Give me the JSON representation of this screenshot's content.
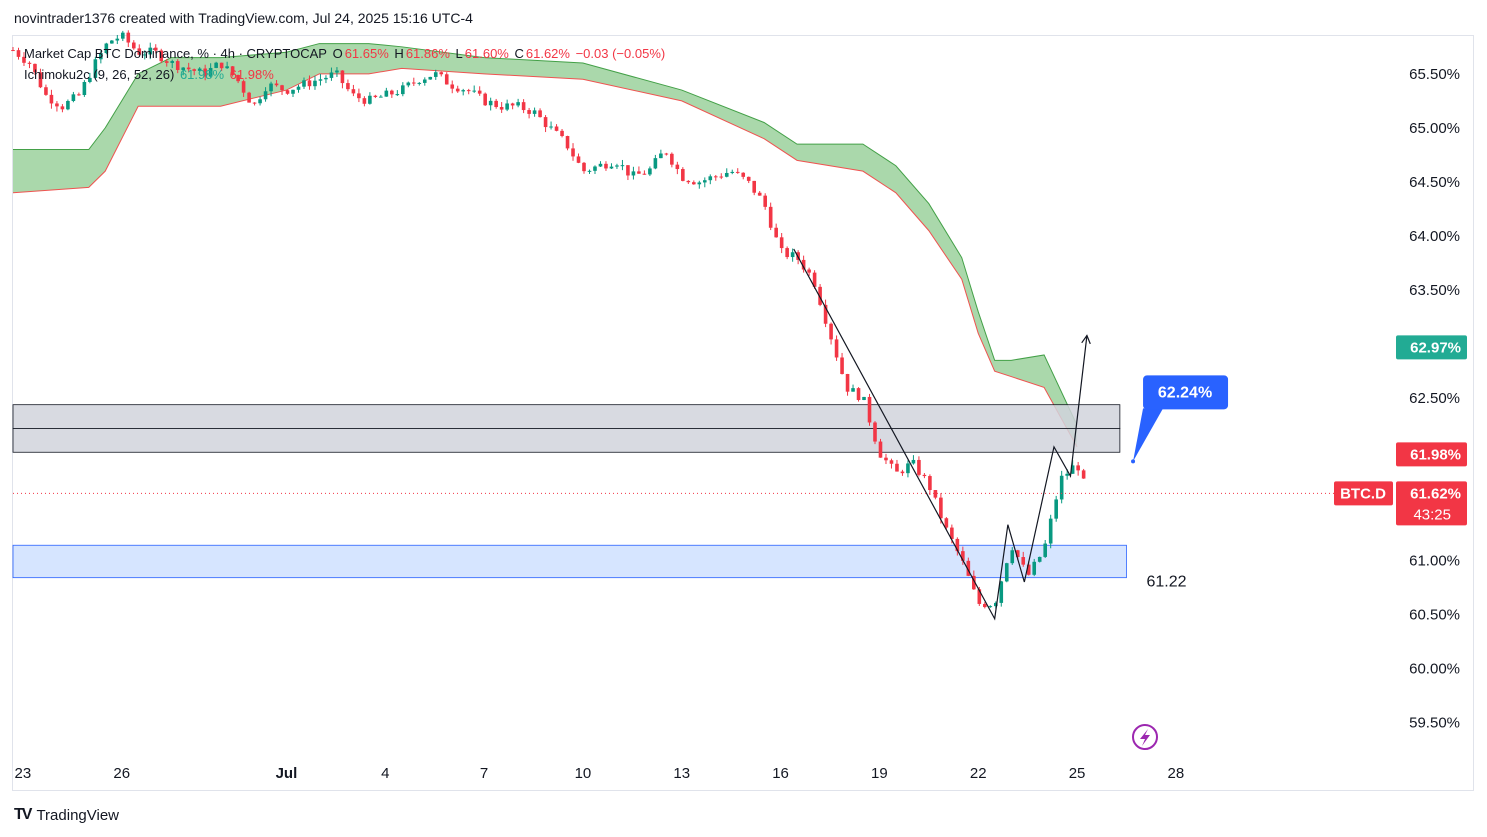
{
  "caption": "novintrader1376 created with TradingView.com, Jul 24, 2025 15:16 UTC-4",
  "brand": {
    "logo": "TV",
    "name": "TradingView"
  },
  "legend": {
    "symbol": "Market Cap BTC Dominance, % · 4h · CRYPTOCAP",
    "o_label": "O",
    "o": "61.65%",
    "h_label": "H",
    "h": "61.86%",
    "l_label": "L",
    "l": "61.60%",
    "c_label": "C",
    "c": "61.62%",
    "change": "−0.03 (−0.05%)",
    "indicator": "Ichimoku2c (9, 26, 52, 26)",
    "indicator_v1": "61.98%",
    "indicator_v2": "61.98%"
  },
  "colors": {
    "up": "#089981",
    "down": "#f23645",
    "cloud": "#a5d6a7",
    "zone_grey": "#d1d4dc",
    "zone_blue": "#cfe0ff",
    "callout": "#2962ff"
  },
  "chart_data": {
    "type": "candlestick",
    "ylim": [
      59.2,
      65.85
    ],
    "y_ticks": [
      "65.50%",
      "65.00%",
      "64.50%",
      "64.00%",
      "63.50%",
      "62.50%",
      "62.00%",
      "61.00%",
      "60.50%",
      "60.00%",
      "59.50%"
    ],
    "y_tick_values": [
      65.5,
      65.0,
      64.5,
      64.0,
      63.5,
      62.5,
      62.0,
      61.0,
      60.5,
      60.0,
      59.5
    ],
    "x_ticks": [
      "23",
      "26",
      "Jul",
      "4",
      "7",
      "10",
      "13",
      "16",
      "19",
      "22",
      "25",
      "28"
    ],
    "x_tick_days": [
      -8,
      -5,
      0,
      3,
      6,
      9,
      12,
      15,
      18,
      21,
      24,
      27
    ],
    "x_range_days": [
      -8.3,
      33.5
    ],
    "close_points": [
      [
        -8.3,
        65.72
      ],
      [
        -7.8,
        65.6
      ],
      [
        -7.3,
        65.3
      ],
      [
        -6.8,
        65.2
      ],
      [
        -6.3,
        65.3
      ],
      [
        -5.8,
        65.6
      ],
      [
        -5.4,
        65.8
      ],
      [
        -5.0,
        65.85
      ],
      [
        -4.5,
        65.7
      ],
      [
        -4.0,
        65.7
      ],
      [
        -3.5,
        65.6
      ],
      [
        -3.0,
        65.55
      ],
      [
        -2.5,
        65.5
      ],
      [
        -2.0,
        65.6
      ],
      [
        -1.5,
        65.45
      ],
      [
        -1.0,
        65.2
      ],
      [
        -0.6,
        65.4
      ],
      [
        0.0,
        65.35
      ],
      [
        0.5,
        65.4
      ],
      [
        1.0,
        65.45
      ],
      [
        1.5,
        65.5
      ],
      [
        2.0,
        65.3
      ],
      [
        2.5,
        65.25
      ],
      [
        3.0,
        65.3
      ],
      [
        3.5,
        65.35
      ],
      [
        4.0,
        65.45
      ],
      [
        4.5,
        65.5
      ],
      [
        5.0,
        65.4
      ],
      [
        5.5,
        65.35
      ],
      [
        6.0,
        65.25
      ],
      [
        6.5,
        65.2
      ],
      [
        7.0,
        65.2
      ],
      [
        7.5,
        65.15
      ],
      [
        8.0,
        65.0
      ],
      [
        8.5,
        64.85
      ],
      [
        9.0,
        64.6
      ],
      [
        9.5,
        64.65
      ],
      [
        10.0,
        64.7
      ],
      [
        10.5,
        64.55
      ],
      [
        11.0,
        64.6
      ],
      [
        11.5,
        64.8
      ],
      [
        12.0,
        64.55
      ],
      [
        12.5,
        64.5
      ],
      [
        13.0,
        64.55
      ],
      [
        13.5,
        64.6
      ],
      [
        14.0,
        64.5
      ],
      [
        14.5,
        64.3
      ],
      [
        15.0,
        63.85
      ],
      [
        15.5,
        63.8
      ],
      [
        16.0,
        63.6
      ],
      [
        16.5,
        63.1
      ],
      [
        17.0,
        62.6
      ],
      [
        17.5,
        62.5
      ],
      [
        18.0,
        62.0
      ],
      [
        18.5,
        61.8
      ],
      [
        19.0,
        61.9
      ],
      [
        19.5,
        61.7
      ],
      [
        20.0,
        61.3
      ],
      [
        20.5,
        61.0
      ],
      [
        21.0,
        60.6
      ],
      [
        21.5,
        60.6
      ],
      [
        22.0,
        61.15
      ],
      [
        22.5,
        60.85
      ],
      [
        23.0,
        61.1
      ],
      [
        23.5,
        61.75
      ],
      [
        24.0,
        61.9
      ],
      [
        24.3,
        61.62
      ]
    ],
    "ichimoku_cloud_top": [
      [
        -8.3,
        64.8
      ],
      [
        -6.0,
        64.8
      ],
      [
        -5.5,
        65.0
      ],
      [
        -4.5,
        65.5
      ],
      [
        -3.5,
        65.65
      ],
      [
        -2.0,
        65.65
      ],
      [
        0.0,
        65.7
      ],
      [
        1.0,
        65.78
      ],
      [
        2.5,
        65.78
      ],
      [
        3.5,
        65.75
      ],
      [
        6.0,
        65.65
      ],
      [
        9.0,
        65.6
      ],
      [
        12.0,
        65.35
      ],
      [
        14.5,
        65.05
      ],
      [
        15.5,
        64.85
      ],
      [
        17.5,
        64.85
      ],
      [
        18.5,
        64.65
      ],
      [
        19.5,
        64.3
      ],
      [
        20.5,
        63.8
      ],
      [
        21.0,
        63.3
      ],
      [
        21.5,
        62.85
      ],
      [
        22.0,
        62.85
      ],
      [
        23.0,
        62.9
      ],
      [
        24.0,
        62.25
      ]
    ],
    "ichimoku_cloud_bottom": [
      [
        -8.3,
        64.4
      ],
      [
        -6.0,
        64.45
      ],
      [
        -5.5,
        64.6
      ],
      [
        -4.5,
        65.2
      ],
      [
        -3.5,
        65.2
      ],
      [
        -2.0,
        65.2
      ],
      [
        0.0,
        65.35
      ],
      [
        1.0,
        65.5
      ],
      [
        2.5,
        65.5
      ],
      [
        3.5,
        65.55
      ],
      [
        6.0,
        65.5
      ],
      [
        9.0,
        65.45
      ],
      [
        12.0,
        65.25
      ],
      [
        14.5,
        64.9
      ],
      [
        15.5,
        64.7
      ],
      [
        17.5,
        64.6
      ],
      [
        18.5,
        64.4
      ],
      [
        19.5,
        64.05
      ],
      [
        20.5,
        63.6
      ],
      [
        21.0,
        63.1
      ],
      [
        21.5,
        62.75
      ],
      [
        22.0,
        62.7
      ],
      [
        23.0,
        62.6
      ],
      [
        24.0,
        62.05
      ]
    ],
    "zones": [
      {
        "name": "grey-resistance-upper",
        "y_low": 62.22,
        "y_high": 62.44,
        "x_end_day": 25.3
      },
      {
        "name": "grey-resistance-lower",
        "y_low": 62.0,
        "y_high": 62.22,
        "x_end_day": 25.3
      },
      {
        "name": "blue-support",
        "y_low": 60.84,
        "y_high": 61.14,
        "x_end_day": 25.5,
        "label": "61.22"
      }
    ],
    "drawn_path": [
      [
        15.4,
        63.88
      ],
      [
        21.5,
        60.46
      ],
      [
        21.9,
        61.33
      ],
      [
        22.4,
        60.8
      ],
      [
        23.3,
        62.05
      ],
      [
        23.8,
        61.78
      ],
      [
        24.3,
        63.08
      ]
    ],
    "callout": {
      "text": "62.24%",
      "anchor_day": 25.7,
      "anchor_value": 62.24
    },
    "price_tags": [
      {
        "text": "62.97%",
        "value": 62.97,
        "color": "#22ab94"
      },
      {
        "text": "61.98%",
        "value": 61.98,
        "color": "#f23645"
      },
      {
        "text": "61.62%",
        "value": 61.62,
        "color": "#f23645",
        "symbol": "BTC.D",
        "timer": "43:25"
      }
    ]
  }
}
